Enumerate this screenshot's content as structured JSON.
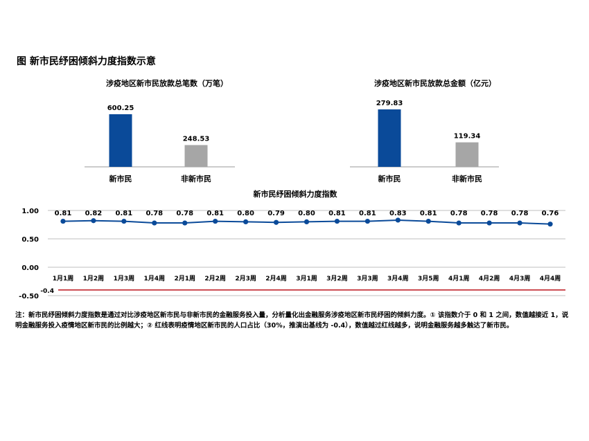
{
  "figure_title": "图  新市民纾困倾斜力度指数示意",
  "note": "注：新市民纾困倾斜力度指数是通过对比涉疫地区新市民与非新市民的金融服务投入量，分析量化出金融服务涉疫地区新市民纾困的倾斜力度。① 该指数介于 0 和 1 之间，数值越接近 1，说明金融服务投入疫情地区新市民的比例越大；② 红线表明疫情地区新市民的人口占比（30%，推演出基线为 -0.4），数值越过红线越多，说明金融服务越多触达了新市民。",
  "colors": {
    "primary_bar": "#0a4a99",
    "secondary_bar": "#a6a6a6",
    "line": "#0a4a99",
    "baseline": "#c0262d",
    "grid": "#bfbfbf"
  },
  "chart_data": [
    {
      "type": "bar",
      "title": "涉疫地区新市民放款总笔数（万笔）",
      "categories": [
        "新市民",
        "非新市民"
      ],
      "values": [
        600.25,
        248.53
      ],
      "value_labels": [
        "600.25",
        "248.53"
      ]
    },
    {
      "type": "bar",
      "title": "涉疫地区新市民放款总金额（亿元）",
      "categories": [
        "新市民",
        "非新市民"
      ],
      "values": [
        279.83,
        119.34
      ],
      "value_labels": [
        "279.83",
        "119.34"
      ]
    },
    {
      "type": "line",
      "title": "新市民纾困倾斜力度指数",
      "categories": [
        "1月1周",
        "1月2周",
        "1月3周",
        "1月4周",
        "2月1周",
        "2月2周",
        "2月3周",
        "2月4周",
        "3月1周",
        "3月2周",
        "3月3周",
        "3月4周",
        "3月5周",
        "4月1周",
        "4月2周",
        "4月3周",
        "4月4周"
      ],
      "values": [
        0.81,
        0.82,
        0.81,
        0.78,
        0.78,
        0.81,
        0.8,
        0.79,
        0.8,
        0.81,
        0.81,
        0.83,
        0.81,
        0.78,
        0.78,
        0.78,
        0.76
      ],
      "value_labels": [
        "0.81",
        "0.82",
        "0.81",
        "0.78",
        "0.78",
        "0.81",
        "0.80",
        "0.79",
        "0.80",
        "0.81",
        "0.81",
        "0.83",
        "0.81",
        "0.78",
        "0.78",
        "0.78",
        "0.76"
      ],
      "yticks": [
        1.0,
        0.5,
        0.0,
        -0.5
      ],
      "ytick_labels": [
        "1.00",
        "0.50",
        "0.00",
        "-0.50"
      ],
      "ylim": [
        -0.5,
        1.0
      ],
      "baseline": -0.4,
      "baseline_label": "-0.4",
      "grid": true
    }
  ]
}
